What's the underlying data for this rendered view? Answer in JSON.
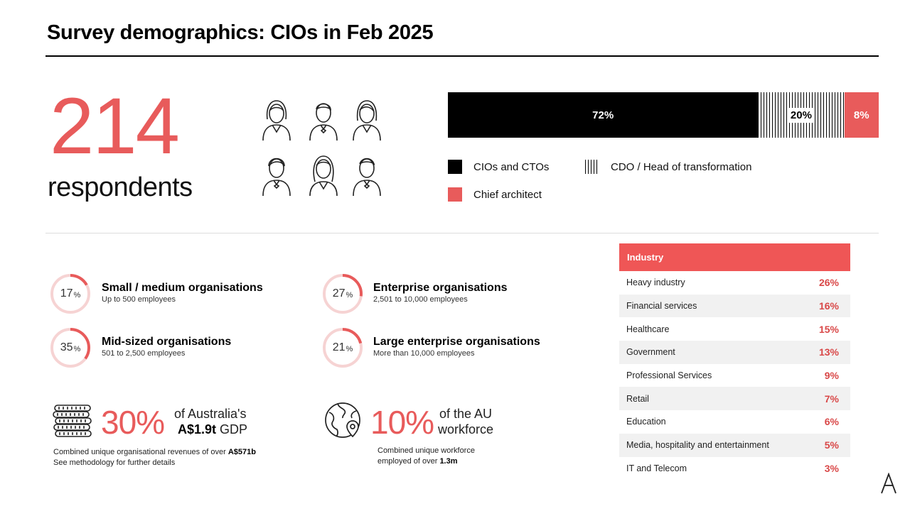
{
  "title": "Survey demographics: CIOs in Feb 2025",
  "respondents": {
    "count": "214",
    "label": "respondents"
  },
  "role_breakdown": {
    "segments": [
      {
        "label": "72%",
        "value": 72
      },
      {
        "label": "20%",
        "value": 20
      },
      {
        "label": "8%",
        "value": 8
      }
    ],
    "legend": {
      "cios": "CIOs and CTOs",
      "cdo": "CDO / Head of transformation",
      "architect": "Chief architect"
    }
  },
  "organisations": [
    {
      "value": "17",
      "pct": 17,
      "unit": "%",
      "title": "Small / medium organisations",
      "subtitle": "Up to 500 employees"
    },
    {
      "value": "27",
      "pct": 27,
      "unit": "%",
      "title": "Enterprise organisations",
      "subtitle": "2,501 to 10,000 employees"
    },
    {
      "value": "35",
      "pct": 35,
      "unit": "%",
      "title": "Mid-sized organisations",
      "subtitle": "501 to 2,500 employees"
    },
    {
      "value": "21",
      "pct": 21,
      "unit": "%",
      "title": "Large enterprise organisations",
      "subtitle": "More than 10,000 employees"
    }
  ],
  "gdp_stat": {
    "value": "30%",
    "line1": "of Australia's",
    "line2_bold": "A$1.9t",
    "line2_rest": " GDP",
    "note_line1": "Combined unique organisational revenues of over ",
    "note_line1_bold": "A$571b",
    "note_line2": "See methodology for further details"
  },
  "workforce_stat": {
    "value": "10%",
    "line1": "of the AU",
    "line2": "workforce",
    "note_line1": "Combined unique workforce",
    "note_line2": "employed of over ",
    "note_line2_bold": "1.3m"
  },
  "industry": {
    "header": "Industry",
    "rows": [
      {
        "name": "Heavy industry",
        "value": "26%"
      },
      {
        "name": "Financial services",
        "value": "16%"
      },
      {
        "name": "Healthcare",
        "value": "15%"
      },
      {
        "name": "Government",
        "value": "13%"
      },
      {
        "name": "Professional Services",
        "value": "9%"
      },
      {
        "name": "Retail",
        "value": "7%"
      },
      {
        "name": "Education",
        "value": "6%"
      },
      {
        "name": "Media, hospitality and entertainment",
        "value": "5%"
      },
      {
        "name": "IT and Telecom",
        "value": "3%"
      }
    ]
  },
  "colors": {
    "accent": "#e85b5b",
    "header_red": "#ef5656",
    "donut_track": "#f6d3d3"
  },
  "icons": [
    "female-person-icon",
    "male-person-icon",
    "coin-stack-icon",
    "globe-location-icon",
    "brand-logo-icon"
  ]
}
